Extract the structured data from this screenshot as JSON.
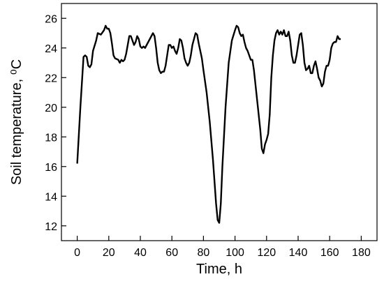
{
  "chart_data": {
    "type": "line",
    "x_label": "Time, h",
    "y_label": "Soil temperature, ⁰C",
    "xlim": [
      -10,
      190
    ],
    "ylim": [
      11,
      27
    ],
    "xticks": [
      0,
      20,
      40,
      60,
      80,
      100,
      120,
      140,
      160,
      180
    ],
    "yticks": [
      12,
      14,
      16,
      18,
      20,
      22,
      24,
      26
    ],
    "x": [
      0,
      2,
      4,
      5,
      6,
      7,
      8,
      9,
      10,
      12,
      13,
      15,
      17,
      18,
      19,
      20,
      21,
      22,
      23,
      24,
      26,
      27,
      28,
      29,
      30,
      31,
      32,
      33,
      34,
      35,
      36,
      37,
      38,
      39,
      40,
      41,
      42,
      43,
      44,
      46,
      48,
      49,
      50,
      51,
      52,
      53,
      54,
      55,
      56,
      57,
      58,
      59,
      60,
      61,
      62,
      63,
      64,
      65,
      66,
      67,
      68,
      69,
      70,
      71,
      72,
      73,
      74,
      75,
      76,
      77,
      78,
      79,
      80,
      82,
      84,
      86,
      88,
      89,
      90,
      91,
      92,
      94,
      96,
      98,
      100,
      101,
      102,
      103,
      104,
      105,
      106,
      107,
      108,
      109,
      110,
      111,
      112,
      114,
      116,
      117,
      118,
      119,
      120,
      121,
      122,
      123,
      124,
      125,
      126,
      127,
      128,
      129,
      130,
      131,
      132,
      133,
      134,
      135,
      136,
      137,
      138,
      139,
      140,
      141,
      142,
      143,
      144,
      145,
      146,
      147,
      148,
      149,
      150,
      151,
      152,
      153,
      154,
      155,
      156,
      157,
      158,
      159,
      160,
      161,
      162,
      163,
      164,
      165,
      166,
      167
    ],
    "series": [
      {
        "color": "#000000",
        "values": [
          16.2,
          20,
          23.4,
          23.5,
          23.4,
          22.8,
          22.7,
          22.9,
          23.8,
          24.5,
          25,
          24.9,
          25.2,
          25.5,
          25.3,
          25.3,
          25,
          24.3,
          23.5,
          23.3,
          23.2,
          23.0,
          23.2,
          23.1,
          23.2,
          23.6,
          24.2,
          24.8,
          24.8,
          24.5,
          24.2,
          24.4,
          24.8,
          24.6,
          24.1,
          24.0,
          24.1,
          24.0,
          24.2,
          24.6,
          25.0,
          24.8,
          24.0,
          23.0,
          22.5,
          22.3,
          22.4,
          22.4,
          22.8,
          23.5,
          24.2,
          24.2,
          24.0,
          24.1,
          23.8,
          23.6,
          24.0,
          24.6,
          24.5,
          24.0,
          23.3,
          23.0,
          22.8,
          23.0,
          23.5,
          24.2,
          24.6,
          25.0,
          24.9,
          24.3,
          23.8,
          23.3,
          22.5,
          21.0,
          19.0,
          16.5,
          13.5,
          12.4,
          12.2,
          13.5,
          16.0,
          20.0,
          23.0,
          24.5,
          25.2,
          25.5,
          25.4,
          25.0,
          24.8,
          24.9,
          24.4,
          24.0,
          23.8,
          23.5,
          23.2,
          23.2,
          22.5,
          20.5,
          18.5,
          17.2,
          16.9,
          17.5,
          17.8,
          18.2,
          19.5,
          22.0,
          23.5,
          24.5,
          25.0,
          25.2,
          24.9,
          25.1,
          24.9,
          25.2,
          24.8,
          24.8,
          25.1,
          24.5,
          23.5,
          23.0,
          23.0,
          23.5,
          24.2,
          24.9,
          25.0,
          24.2,
          23.0,
          22.5,
          22.6,
          22.8,
          22.3,
          22.3,
          22.8,
          23.1,
          22.6,
          22.0,
          21.8,
          21.4,
          21.6,
          22.4,
          22.8,
          22.8,
          23.2,
          24.0,
          24.3,
          24.4,
          24.4,
          24.8,
          24.6,
          24.6
        ]
      }
    ]
  }
}
